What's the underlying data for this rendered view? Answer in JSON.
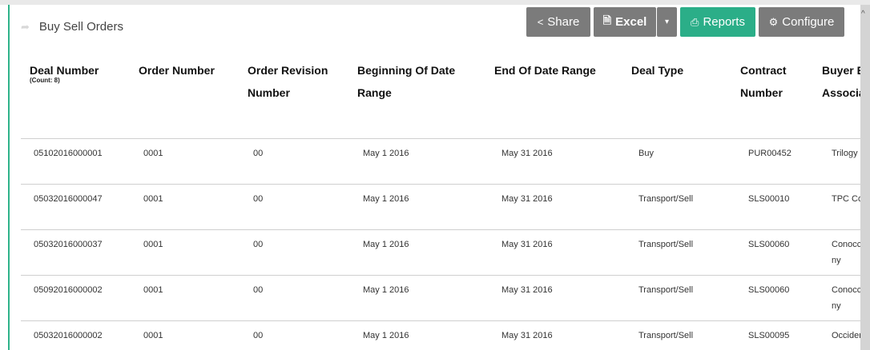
{
  "title": "Buy Sell Orders",
  "toolbar": {
    "share": "Share",
    "excel": "Excel",
    "reports": "Reports",
    "configure": "Configure"
  },
  "colors": {
    "accent": "#2bae88",
    "button_gray": "#7b7b7b"
  },
  "table": {
    "deal_count": "(Count: 8)",
    "headers": [
      [
        "Deal Number",
        ""
      ],
      [
        "Order Number",
        ""
      ],
      [
        "Order Revision",
        "Number"
      ],
      [
        "Beginning Of Date",
        "Range"
      ],
      [
        "End Of Date Range",
        ""
      ],
      [
        "Deal Type",
        ""
      ],
      [
        "Contract",
        "Number"
      ],
      [
        "Buyer B",
        "Associa"
      ]
    ],
    "rows": [
      [
        "05102016000001",
        "0001",
        "00",
        "May 1 2016",
        "May 31 2016",
        "Buy",
        "PUR00452",
        "Trilogy"
      ],
      [
        "05032016000047",
        "0001",
        "00",
        "May 1 2016",
        "May 31 2016",
        "Transport/Sell",
        "SLS00010",
        "TPC Co"
      ],
      [
        "05032016000037",
        "0001",
        "00",
        "May 1 2016",
        "May 31 2016",
        "Transport/Sell",
        "SLS00060",
        "Conocc ny"
      ],
      [
        "05092016000002",
        "0001",
        "00",
        "May 1 2016",
        "May 31 2016",
        "Transport/Sell",
        "SLS00060",
        "Conocc ny"
      ],
      [
        "05032016000002",
        "0001",
        "00",
        "May 1 2016",
        "May 31 2016",
        "Transport/Sell",
        "SLS00095",
        "Occider"
      ]
    ]
  }
}
